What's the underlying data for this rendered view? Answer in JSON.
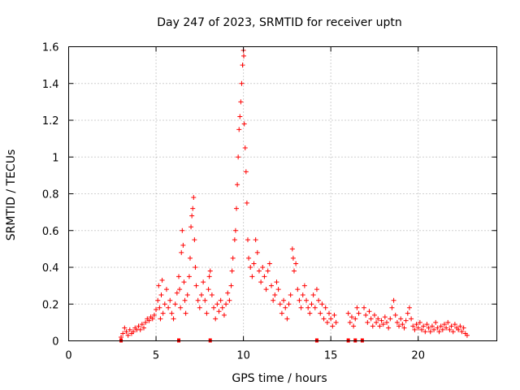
{
  "chart_data": {
    "type": "scatter",
    "title": "Day 247 of 2023, SRMTID for receiver uptn",
    "xlabel": "GPS time / hours",
    "ylabel": "SRMTID / TECUs",
    "xlim": [
      0,
      24.5
    ],
    "ylim": [
      0,
      1.6
    ],
    "xticks": [
      "0",
      "5",
      "10",
      "15",
      "20"
    ],
    "xtick_values": [
      0,
      5,
      10,
      15,
      20
    ],
    "yticks": [
      "0",
      "0.2",
      "0.4",
      "0.6",
      "0.8",
      "1",
      "1.2",
      "1.4",
      "1.6"
    ],
    "ytick_values": [
      0,
      0.2,
      0.4,
      0.6,
      0.8,
      1.0,
      1.2,
      1.4,
      1.6
    ],
    "grid": true,
    "marker": "plus",
    "color": "#ff0000",
    "series": [
      {
        "name": "SRMTID",
        "points": [
          [
            3.0,
            0.02
          ],
          [
            3.1,
            0.04
          ],
          [
            3.2,
            0.07
          ],
          [
            3.3,
            0.05
          ],
          [
            3.4,
            0.03
          ],
          [
            3.5,
            0.06
          ],
          [
            3.6,
            0.04
          ],
          [
            3.7,
            0.05
          ],
          [
            3.8,
            0.07
          ],
          [
            3.9,
            0.06
          ],
          [
            4.0,
            0.08
          ],
          [
            4.1,
            0.06
          ],
          [
            4.2,
            0.09
          ],
          [
            4.3,
            0.07
          ],
          [
            4.4,
            0.1
          ],
          [
            4.5,
            0.12
          ],
          [
            4.6,
            0.11
          ],
          [
            4.7,
            0.13
          ],
          [
            4.8,
            0.12
          ],
          [
            4.9,
            0.14
          ],
          [
            5.0,
            0.17
          ],
          [
            5.1,
            0.22
          ],
          [
            5.15,
            0.3
          ],
          [
            5.2,
            0.18
          ],
          [
            5.25,
            0.12
          ],
          [
            5.3,
            0.25
          ],
          [
            5.35,
            0.33
          ],
          [
            5.4,
            0.15
          ],
          [
            5.5,
            0.2
          ],
          [
            5.6,
            0.28
          ],
          [
            5.7,
            0.18
          ],
          [
            5.8,
            0.22
          ],
          [
            5.9,
            0.15
          ],
          [
            6.0,
            0.12
          ],
          [
            6.1,
            0.2
          ],
          [
            6.2,
            0.26
          ],
          [
            6.3,
            0.35
          ],
          [
            6.35,
            0.28
          ],
          [
            6.4,
            0.18
          ],
          [
            6.45,
            0.48
          ],
          [
            6.5,
            0.6
          ],
          [
            6.55,
            0.52
          ],
          [
            6.6,
            0.32
          ],
          [
            6.65,
            0.22
          ],
          [
            6.7,
            0.15
          ],
          [
            6.8,
            0.25
          ],
          [
            6.9,
            0.35
          ],
          [
            6.95,
            0.45
          ],
          [
            7.0,
            0.62
          ],
          [
            7.05,
            0.68
          ],
          [
            7.1,
            0.72
          ],
          [
            7.15,
            0.78
          ],
          [
            7.2,
            0.55
          ],
          [
            7.25,
            0.4
          ],
          [
            7.3,
            0.3
          ],
          [
            7.4,
            0.22
          ],
          [
            7.5,
            0.18
          ],
          [
            7.6,
            0.25
          ],
          [
            7.7,
            0.32
          ],
          [
            7.8,
            0.22
          ],
          [
            7.9,
            0.15
          ],
          [
            8.0,
            0.28
          ],
          [
            8.05,
            0.35
          ],
          [
            8.1,
            0.38
          ],
          [
            8.2,
            0.25
          ],
          [
            8.3,
            0.18
          ],
          [
            8.4,
            0.12
          ],
          [
            8.5,
            0.2
          ],
          [
            8.6,
            0.16
          ],
          [
            8.7,
            0.22
          ],
          [
            8.8,
            0.18
          ],
          [
            8.9,
            0.14
          ],
          [
            9.0,
            0.2
          ],
          [
            9.1,
            0.26
          ],
          [
            9.2,
            0.22
          ],
          [
            9.3,
            0.3
          ],
          [
            9.35,
            0.38
          ],
          [
            9.4,
            0.45
          ],
          [
            9.5,
            0.55
          ],
          [
            9.55,
            0.6
          ],
          [
            9.6,
            0.72
          ],
          [
            9.65,
            0.85
          ],
          [
            9.7,
            1.0
          ],
          [
            9.75,
            1.15
          ],
          [
            9.8,
            1.22
          ],
          [
            9.85,
            1.3
          ],
          [
            9.9,
            1.4
          ],
          [
            9.95,
            1.5
          ],
          [
            10.0,
            1.58
          ],
          [
            10.02,
            1.55
          ],
          [
            10.05,
            1.18
          ],
          [
            10.1,
            1.05
          ],
          [
            10.15,
            0.92
          ],
          [
            10.2,
            0.75
          ],
          [
            10.25,
            0.55
          ],
          [
            10.3,
            0.45
          ],
          [
            10.4,
            0.4
          ],
          [
            10.5,
            0.35
          ],
          [
            10.6,
            0.42
          ],
          [
            10.7,
            0.55
          ],
          [
            10.8,
            0.48
          ],
          [
            10.9,
            0.38
          ],
          [
            11.0,
            0.32
          ],
          [
            11.1,
            0.4
          ],
          [
            11.2,
            0.35
          ],
          [
            11.3,
            0.28
          ],
          [
            11.4,
            0.38
          ],
          [
            11.5,
            0.42
          ],
          [
            11.6,
            0.3
          ],
          [
            11.7,
            0.22
          ],
          [
            11.8,
            0.25
          ],
          [
            11.9,
            0.32
          ],
          [
            12.0,
            0.28
          ],
          [
            12.1,
            0.2
          ],
          [
            12.2,
            0.15
          ],
          [
            12.3,
            0.22
          ],
          [
            12.4,
            0.18
          ],
          [
            12.5,
            0.12
          ],
          [
            12.6,
            0.2
          ],
          [
            12.7,
            0.25
          ],
          [
            12.8,
            0.5
          ],
          [
            12.85,
            0.45
          ],
          [
            12.9,
            0.38
          ],
          [
            13.0,
            0.42
          ],
          [
            13.1,
            0.28
          ],
          [
            13.2,
            0.22
          ],
          [
            13.3,
            0.18
          ],
          [
            13.4,
            0.25
          ],
          [
            13.5,
            0.3
          ],
          [
            13.6,
            0.22
          ],
          [
            13.7,
            0.18
          ],
          [
            13.8,
            0.15
          ],
          [
            13.9,
            0.2
          ],
          [
            14.0,
            0.25
          ],
          [
            14.1,
            0.18
          ],
          [
            14.2,
            0.28
          ],
          [
            14.3,
            0.22
          ],
          [
            14.4,
            0.15
          ],
          [
            14.5,
            0.2
          ],
          [
            14.6,
            0.12
          ],
          [
            14.7,
            0.18
          ],
          [
            14.8,
            0.1
          ],
          [
            14.9,
            0.15
          ],
          [
            15.0,
            0.12
          ],
          [
            15.1,
            0.08
          ],
          [
            15.2,
            0.14
          ],
          [
            15.3,
            0.1
          ],
          [
            16.0,
            0.15
          ],
          [
            16.1,
            0.1
          ],
          [
            16.2,
            0.13
          ],
          [
            16.3,
            0.08
          ],
          [
            16.4,
            0.12
          ],
          [
            16.5,
            0.18
          ],
          [
            16.6,
            0.15
          ],
          [
            16.9,
            0.18
          ],
          [
            17.0,
            0.14
          ],
          [
            17.1,
            0.1
          ],
          [
            17.2,
            0.16
          ],
          [
            17.3,
            0.12
          ],
          [
            17.4,
            0.08
          ],
          [
            17.5,
            0.14
          ],
          [
            17.6,
            0.1
          ],
          [
            17.7,
            0.12
          ],
          [
            17.8,
            0.08
          ],
          [
            17.9,
            0.11
          ],
          [
            18.0,
            0.09
          ],
          [
            18.1,
            0.13
          ],
          [
            18.2,
            0.1
          ],
          [
            18.3,
            0.07
          ],
          [
            18.4,
            0.12
          ],
          [
            18.5,
            0.18
          ],
          [
            18.6,
            0.22
          ],
          [
            18.7,
            0.14
          ],
          [
            18.8,
            0.1
          ],
          [
            18.9,
            0.08
          ],
          [
            19.0,
            0.12
          ],
          [
            19.1,
            0.09
          ],
          [
            19.2,
            0.07
          ],
          [
            19.3,
            0.11
          ],
          [
            19.4,
            0.15
          ],
          [
            19.5,
            0.18
          ],
          [
            19.6,
            0.12
          ],
          [
            19.7,
            0.08
          ],
          [
            19.8,
            0.06
          ],
          [
            19.9,
            0.09
          ],
          [
            20.0,
            0.07
          ],
          [
            20.1,
            0.1
          ],
          [
            20.2,
            0.06
          ],
          [
            20.3,
            0.08
          ],
          [
            20.4,
            0.05
          ],
          [
            20.5,
            0.09
          ],
          [
            20.6,
            0.07
          ],
          [
            20.7,
            0.05
          ],
          [
            20.8,
            0.08
          ],
          [
            20.9,
            0.06
          ],
          [
            21.0,
            0.1
          ],
          [
            21.1,
            0.07
          ],
          [
            21.2,
            0.05
          ],
          [
            21.3,
            0.08
          ],
          [
            21.4,
            0.06
          ],
          [
            21.5,
            0.09
          ],
          [
            21.6,
            0.07
          ],
          [
            21.7,
            0.1
          ],
          [
            21.8,
            0.06
          ],
          [
            21.9,
            0.08
          ],
          [
            22.0,
            0.05
          ],
          [
            22.1,
            0.09
          ],
          [
            22.2,
            0.07
          ],
          [
            22.3,
            0.06
          ],
          [
            22.4,
            0.08
          ],
          [
            22.5,
            0.05
          ],
          [
            22.6,
            0.07
          ],
          [
            22.7,
            0.04
          ],
          [
            22.8,
            0.03
          ]
        ]
      }
    ],
    "baseline_markers_x": [
      3.0,
      6.3,
      8.1,
      14.2,
      16.0,
      16.4,
      16.8
    ]
  }
}
